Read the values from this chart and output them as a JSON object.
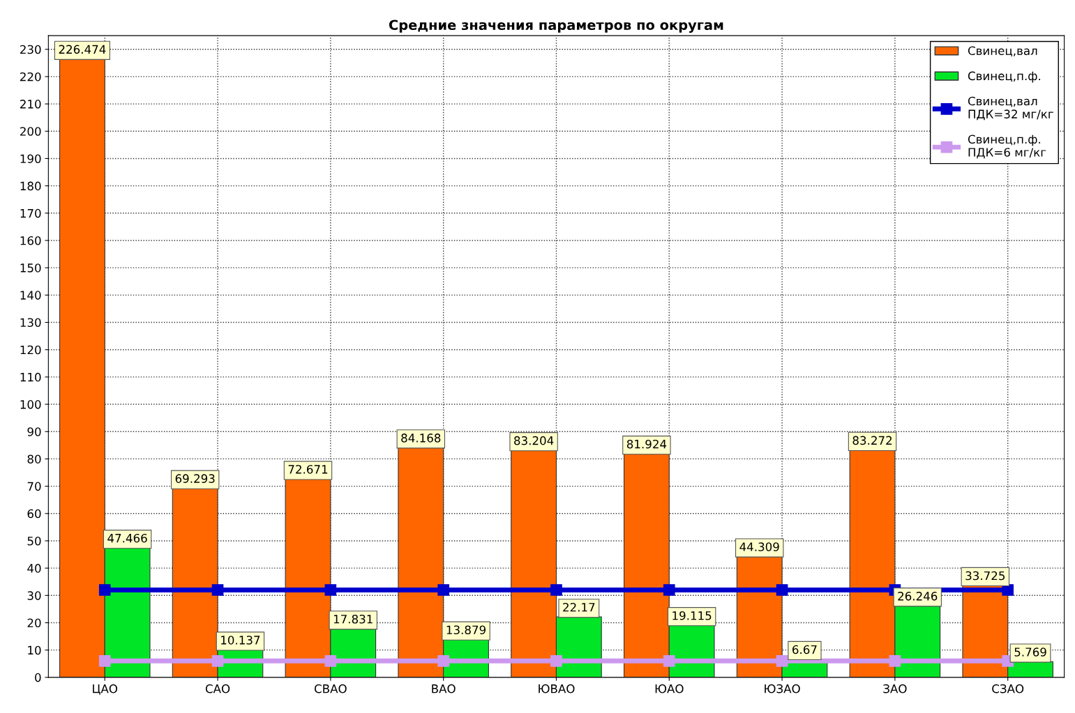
{
  "chart_data": {
    "type": "bar",
    "title": "Средние значения параметров по округам",
    "categories": [
      "ЦАО",
      "САО",
      "СВАО",
      "ВАО",
      "ЮВАО",
      "ЮАО",
      "ЮЗАО",
      "ЗАО",
      "СЗАО"
    ],
    "series": [
      {
        "name": "Свинец,вал",
        "color": "#ff6600",
        "values": [
          226.474,
          69.293,
          72.671,
          84.168,
          83.204,
          81.924,
          44.309,
          83.272,
          33.725
        ],
        "value_labels": [
          "226.474",
          "69.293",
          "72.671",
          "84.168",
          "83.204",
          "81.924",
          "44.309",
          "83.272",
          "33.725"
        ]
      },
      {
        "name": "Свинец,п.ф.",
        "color": "#00e626",
        "values": [
          47.466,
          10.137,
          17.831,
          13.879,
          22.17,
          19.115,
          6.67,
          26.246,
          5.769
        ],
        "value_labels": [
          "47.466",
          "10.137",
          "17.831",
          "13.879",
          "22.17",
          "19.115",
          "6.67",
          "26.246",
          "5.769"
        ]
      },
      {
        "name": "Свинец,вал\nПДК=32 мг/кг",
        "type": "line",
        "color": "#0000cc",
        "marker": "square",
        "values": [
          32,
          32,
          32,
          32,
          32,
          32,
          32,
          32,
          32
        ]
      },
      {
        "name": "Свинец,п.ф.\nПДК=6 мг/кг",
        "type": "line",
        "color": "#cc99ee",
        "marker": "square",
        "values": [
          6,
          6,
          6,
          6,
          6,
          6,
          6,
          6,
          6
        ]
      }
    ],
    "ylim": [
      0,
      235
    ],
    "yticks": [
      0,
      10,
      20,
      30,
      40,
      50,
      60,
      70,
      80,
      90,
      100,
      110,
      120,
      130,
      140,
      150,
      160,
      170,
      180,
      190,
      200,
      210,
      220,
      230
    ],
    "grid": true,
    "legend": "top right"
  }
}
